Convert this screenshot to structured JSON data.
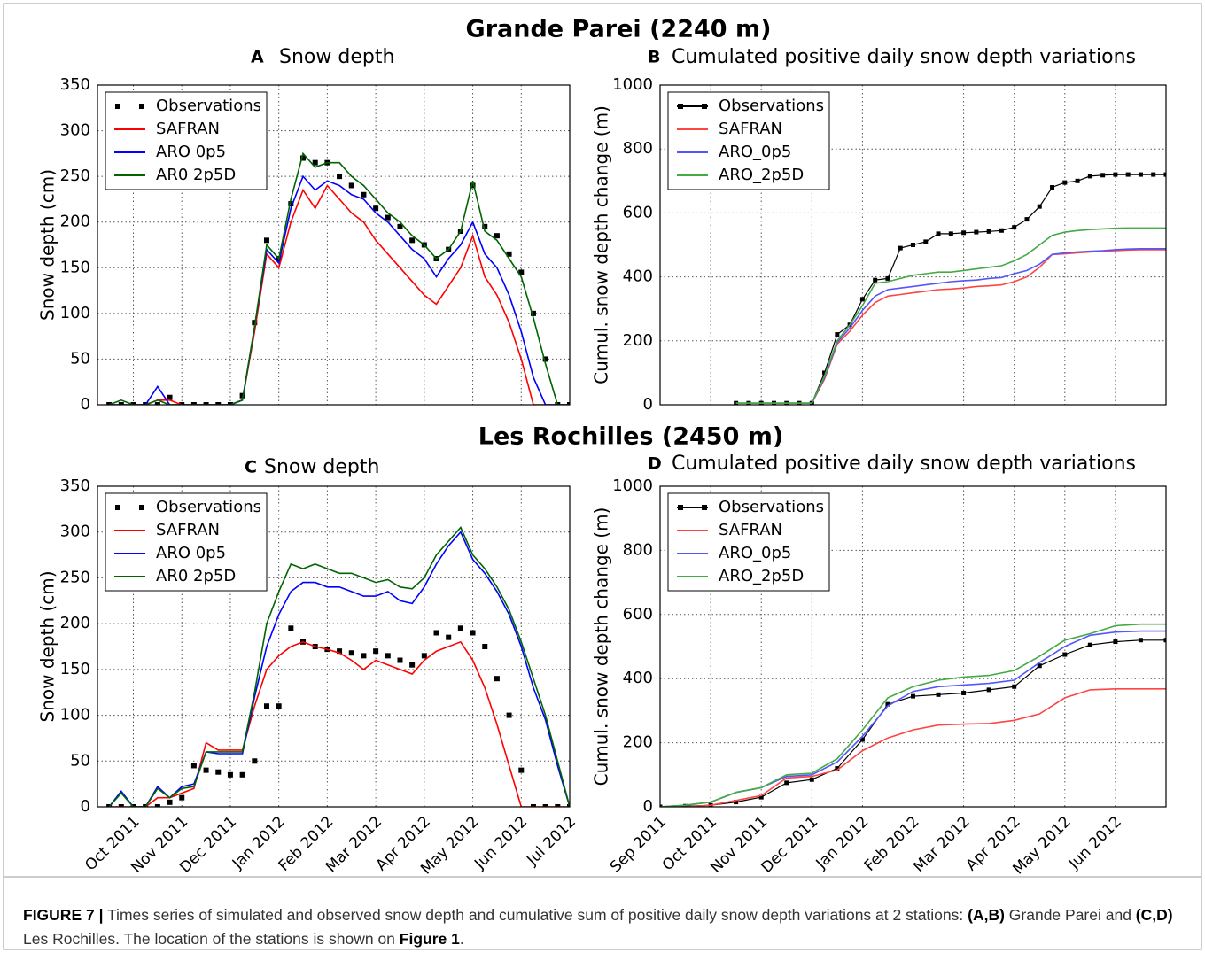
{
  "figure": {
    "titles": [
      "Grande Parei (2240 m)",
      "Les Rochilles (2450 m)"
    ],
    "caption": [
      {
        "text": "FIGURE 7 |",
        "bold": true
      },
      {
        "text": " Times series of simulated and observed snow depth and cumulative sum of positive daily snow depth variations at 2 stations: ",
        "bold": false
      },
      {
        "text": "(A,B)",
        "bold": true
      },
      {
        "text": " Grande Parei and ",
        "bold": false
      },
      {
        "text": "(C,D)",
        "bold": true
      },
      {
        "text": " Les Rochilles. The location of the stations is shown on ",
        "bold": false
      },
      {
        "text": "Figure 1",
        "bold": true
      },
      {
        "text": ".",
        "bold": false
      }
    ]
  },
  "chart_data": [
    {
      "type": "line",
      "panel": "A",
      "title": "Snow depth",
      "ylabel": "Snow depth (cm)",
      "x": [
        0.5,
        0.75,
        1,
        1.25,
        1.5,
        1.75,
        2,
        2.25,
        2.5,
        2.75,
        3,
        3.25,
        3.5,
        3.75,
        4,
        4.25,
        4.5,
        4.75,
        5,
        5.25,
        5.5,
        5.75,
        6,
        6.25,
        6.5,
        6.75,
        7,
        7.25,
        7.5,
        7.75,
        8,
        8.25,
        8.5,
        8.75,
        9,
        9.25,
        9.5,
        9.75,
        10
      ],
      "series": [
        {
          "name": "Observations",
          "color": "#000000",
          "style": "markers",
          "values": [
            0,
            0,
            0,
            0,
            0,
            8,
            0,
            0,
            0,
            0,
            0,
            10,
            90,
            180,
            160,
            220,
            270,
            265,
            265,
            250,
            240,
            230,
            215,
            205,
            195,
            180,
            175,
            160,
            170,
            190,
            240,
            195,
            185,
            165,
            145,
            100,
            50,
            0,
            0
          ]
        },
        {
          "name": "SAFRAN",
          "color": "#ff0000",
          "style": "line",
          "values": [
            0,
            0,
            0,
            0,
            5,
            5,
            0,
            0,
            0,
            0,
            0,
            5,
            80,
            165,
            150,
            200,
            235,
            215,
            240,
            225,
            210,
            200,
            180,
            165,
            150,
            135,
            120,
            110,
            130,
            150,
            185,
            140,
            120,
            90,
            50,
            0,
            0,
            0,
            0
          ]
        },
        {
          "name": "ARO 0p5",
          "color": "#0000ff",
          "style": "line",
          "values": [
            0,
            0,
            0,
            0,
            20,
            0,
            0,
            0,
            0,
            0,
            0,
            5,
            85,
            170,
            155,
            215,
            250,
            235,
            245,
            240,
            230,
            225,
            210,
            200,
            185,
            170,
            160,
            140,
            160,
            175,
            200,
            165,
            150,
            120,
            80,
            30,
            0,
            0,
            0
          ]
        },
        {
          "name": "AR0 2p5D",
          "color": "#006400",
          "style": "line",
          "values": [
            0,
            5,
            0,
            0,
            5,
            0,
            0,
            0,
            0,
            0,
            0,
            5,
            85,
            175,
            160,
            225,
            275,
            260,
            265,
            265,
            250,
            240,
            225,
            210,
            200,
            185,
            175,
            160,
            170,
            190,
            245,
            190,
            180,
            160,
            140,
            95,
            45,
            0,
            0
          ]
        }
      ],
      "xlim": [
        0.26,
        10
      ],
      "ylim": [
        0,
        350
      ],
      "xticks": [
        1,
        2,
        3,
        4,
        5,
        6,
        7,
        8,
        9,
        10
      ],
      "xtick_labels": false,
      "yticks": [
        0,
        50,
        100,
        150,
        200,
        250,
        300,
        350
      ],
      "grid": true,
      "legend": "upper left"
    },
    {
      "type": "line",
      "panel": "B",
      "title": "Cumulated positive daily snow depth variations",
      "ylabel": "Cumul. snow depth change (m)",
      "x": [
        1.5,
        1.75,
        2,
        2.25,
        2.5,
        2.75,
        3,
        3.25,
        3.5,
        3.75,
        4,
        4.25,
        4.5,
        4.75,
        5,
        5.25,
        5.5,
        5.75,
        6,
        6.25,
        6.5,
        6.75,
        7,
        7.25,
        7.5,
        7.75,
        8,
        8.25,
        8.5,
        8.75,
        9,
        9.25,
        9.5,
        9.75,
        10
      ],
      "series": [
        {
          "name": "Observations",
          "color": "#000000",
          "style": "line-markers",
          "values": [
            5,
            5,
            5,
            5,
            5,
            5,
            5,
            100,
            220,
            250,
            330,
            390,
            395,
            490,
            500,
            510,
            535,
            535,
            538,
            540,
            542,
            545,
            555,
            580,
            620,
            680,
            695,
            700,
            715,
            718,
            720,
            720,
            720,
            720,
            720
          ]
        },
        {
          "name": "SAFRAN",
          "color": "#ff4444",
          "style": "line",
          "values": [
            5,
            5,
            5,
            5,
            5,
            5,
            5,
            80,
            190,
            230,
            280,
            320,
            340,
            345,
            350,
            355,
            360,
            362,
            365,
            370,
            372,
            375,
            385,
            400,
            430,
            470,
            472,
            475,
            478,
            480,
            482,
            484,
            485,
            485,
            485
          ]
        },
        {
          "name": "ARO_0p5",
          "color": "#5555ff",
          "style": "line",
          "values": [
            5,
            5,
            5,
            5,
            5,
            5,
            5,
            85,
            195,
            240,
            295,
            340,
            360,
            365,
            370,
            375,
            380,
            385,
            388,
            390,
            395,
            398,
            410,
            420,
            440,
            470,
            475,
            478,
            480,
            482,
            485,
            487,
            488,
            488,
            488
          ]
        },
        {
          "name": "ARO_2p5D",
          "color": "#44aa44",
          "style": "line",
          "values": [
            5,
            5,
            5,
            5,
            5,
            5,
            5,
            90,
            200,
            250,
            310,
            380,
            385,
            395,
            405,
            410,
            415,
            415,
            420,
            425,
            430,
            435,
            450,
            470,
            500,
            530,
            540,
            545,
            548,
            550,
            552,
            553,
            553,
            553,
            553
          ]
        }
      ],
      "xlim": [
        0,
        10
      ],
      "ylim": [
        0,
        1000
      ],
      "xticks": [
        0,
        1,
        2,
        3,
        4,
        5,
        6,
        7,
        8,
        9
      ],
      "xtick_labels": false,
      "yticks": [
        0,
        200,
        400,
        600,
        800,
        1000
      ],
      "grid": true,
      "legend": "upper left"
    },
    {
      "type": "line",
      "panel": "C",
      "title": "Snow depth",
      "ylabel": "Snow depth (cm)",
      "x": [
        0.5,
        0.75,
        1,
        1.25,
        1.5,
        1.75,
        2,
        2.25,
        2.5,
        2.75,
        3,
        3.25,
        3.5,
        3.75,
        4,
        4.25,
        4.5,
        4.75,
        5,
        5.25,
        5.5,
        5.75,
        6,
        6.25,
        6.5,
        6.75,
        7,
        7.25,
        7.5,
        7.75,
        8,
        8.25,
        8.5,
        8.75,
        9,
        9.25,
        9.5,
        9.75,
        10
      ],
      "series": [
        {
          "name": "Observations",
          "color": "#000000",
          "style": "markers",
          "values": [
            0,
            0,
            0,
            0,
            0,
            5,
            10,
            45,
            40,
            38,
            35,
            35,
            50,
            110,
            110,
            195,
            180,
            175,
            172,
            170,
            168,
            165,
            170,
            165,
            160,
            155,
            165,
            190,
            185,
            195,
            190,
            175,
            140,
            100,
            40,
            0,
            0,
            0,
            0
          ]
        },
        {
          "name": "SAFRAN",
          "color": "#ff0000",
          "style": "line",
          "values": [
            0,
            0,
            0,
            0,
            10,
            10,
            15,
            20,
            70,
            62,
            62,
            62,
            110,
            150,
            165,
            175,
            180,
            175,
            172,
            168,
            160,
            150,
            160,
            155,
            150,
            145,
            160,
            170,
            175,
            180,
            160,
            130,
            90,
            45,
            0,
            0,
            0,
            0,
            0
          ]
        },
        {
          "name": "ARO 0p5",
          "color": "#0000ff",
          "style": "line",
          "values": [
            0,
            17,
            0,
            0,
            22,
            10,
            22,
            25,
            60,
            58,
            58,
            58,
            120,
            175,
            210,
            235,
            245,
            245,
            240,
            240,
            235,
            230,
            230,
            235,
            225,
            222,
            240,
            265,
            285,
            300,
            270,
            255,
            235,
            210,
            175,
            130,
            95,
            45,
            0
          ]
        },
        {
          "name": "AR0 2p5D",
          "color": "#006400",
          "style": "line",
          "values": [
            0,
            15,
            0,
            0,
            20,
            10,
            20,
            22,
            60,
            60,
            60,
            60,
            125,
            200,
            235,
            265,
            260,
            265,
            260,
            255,
            255,
            250,
            245,
            248,
            240,
            238,
            250,
            275,
            290,
            305,
            275,
            260,
            240,
            215,
            180,
            140,
            100,
            50,
            0
          ]
        }
      ],
      "xlim": [
        0.26,
        10
      ],
      "ylim": [
        0,
        350
      ],
      "xticks": [
        {
          "value": 1,
          "label": "Oct 2011"
        },
        {
          "value": 2,
          "label": "Nov 2011"
        },
        {
          "value": 3,
          "label": "Dec 2011"
        },
        {
          "value": 4,
          "label": "Jan 2012"
        },
        {
          "value": 5,
          "label": "Feb 2012"
        },
        {
          "value": 6,
          "label": "Mar 2012"
        },
        {
          "value": 7,
          "label": "Apr 2012"
        },
        {
          "value": 8,
          "label": "May 2012"
        },
        {
          "value": 9,
          "label": "Jun 2012"
        },
        {
          "value": 10,
          "label": "Jul 2012"
        }
      ],
      "xtick_labels": true,
      "yticks": [
        0,
        50,
        100,
        150,
        200,
        250,
        300,
        350
      ],
      "grid": true,
      "legend": "upper left"
    },
    {
      "type": "line",
      "panel": "D",
      "title": "Cumulated positive daily snow depth variations",
      "ylabel": "Cumul. snow depth change (m)",
      "x": [
        0,
        0.5,
        1,
        1.5,
        2,
        2.5,
        3,
        3.5,
        4,
        4.5,
        5,
        5.5,
        6,
        6.5,
        7,
        7.5,
        8,
        8.5,
        9,
        9.5,
        10
      ],
      "series": [
        {
          "name": "Observations",
          "color": "#000000",
          "style": "line-markers",
          "values": [
            0,
            2,
            5,
            15,
            30,
            75,
            85,
            120,
            210,
            320,
            345,
            350,
            355,
            365,
            375,
            440,
            475,
            505,
            515,
            520,
            520
          ]
        },
        {
          "name": "SAFRAN",
          "color": "#ff4444",
          "style": "line",
          "values": [
            0,
            0,
            5,
            20,
            35,
            90,
            95,
            115,
            175,
            215,
            240,
            255,
            258,
            260,
            270,
            290,
            340,
            365,
            368,
            368,
            368
          ]
        },
        {
          "name": "ARO_0p5",
          "color": "#5555ff",
          "style": "line",
          "values": [
            0,
            5,
            15,
            45,
            60,
            95,
            100,
            140,
            220,
            315,
            360,
            375,
            380,
            385,
            395,
            450,
            500,
            535,
            545,
            548,
            548
          ]
        },
        {
          "name": "ARO_2p5D",
          "color": "#44aa44",
          "style": "line",
          "values": [
            0,
            5,
            15,
            45,
            60,
            100,
            105,
            150,
            240,
            340,
            375,
            395,
            405,
            410,
            425,
            470,
            520,
            540,
            565,
            570,
            570
          ]
        }
      ],
      "xlim": [
        0,
        10
      ],
      "ylim": [
        0,
        1000
      ],
      "xticks": [
        {
          "value": 0,
          "label": "Sep 2011"
        },
        {
          "value": 1,
          "label": "Oct 2011"
        },
        {
          "value": 2,
          "label": "Nov 2011"
        },
        {
          "value": 3,
          "label": "Dec 2011"
        },
        {
          "value": 4,
          "label": "Jan 2012"
        },
        {
          "value": 5,
          "label": "Feb 2012"
        },
        {
          "value": 6,
          "label": "Mar 2012"
        },
        {
          "value": 7,
          "label": "Apr 2012"
        },
        {
          "value": 8,
          "label": "May 2012"
        },
        {
          "value": 9,
          "label": "Jun 2012"
        }
      ],
      "xtick_labels": true,
      "yticks": [
        0,
        200,
        400,
        600,
        800,
        1000
      ],
      "grid": true,
      "legend": "upper left"
    }
  ]
}
